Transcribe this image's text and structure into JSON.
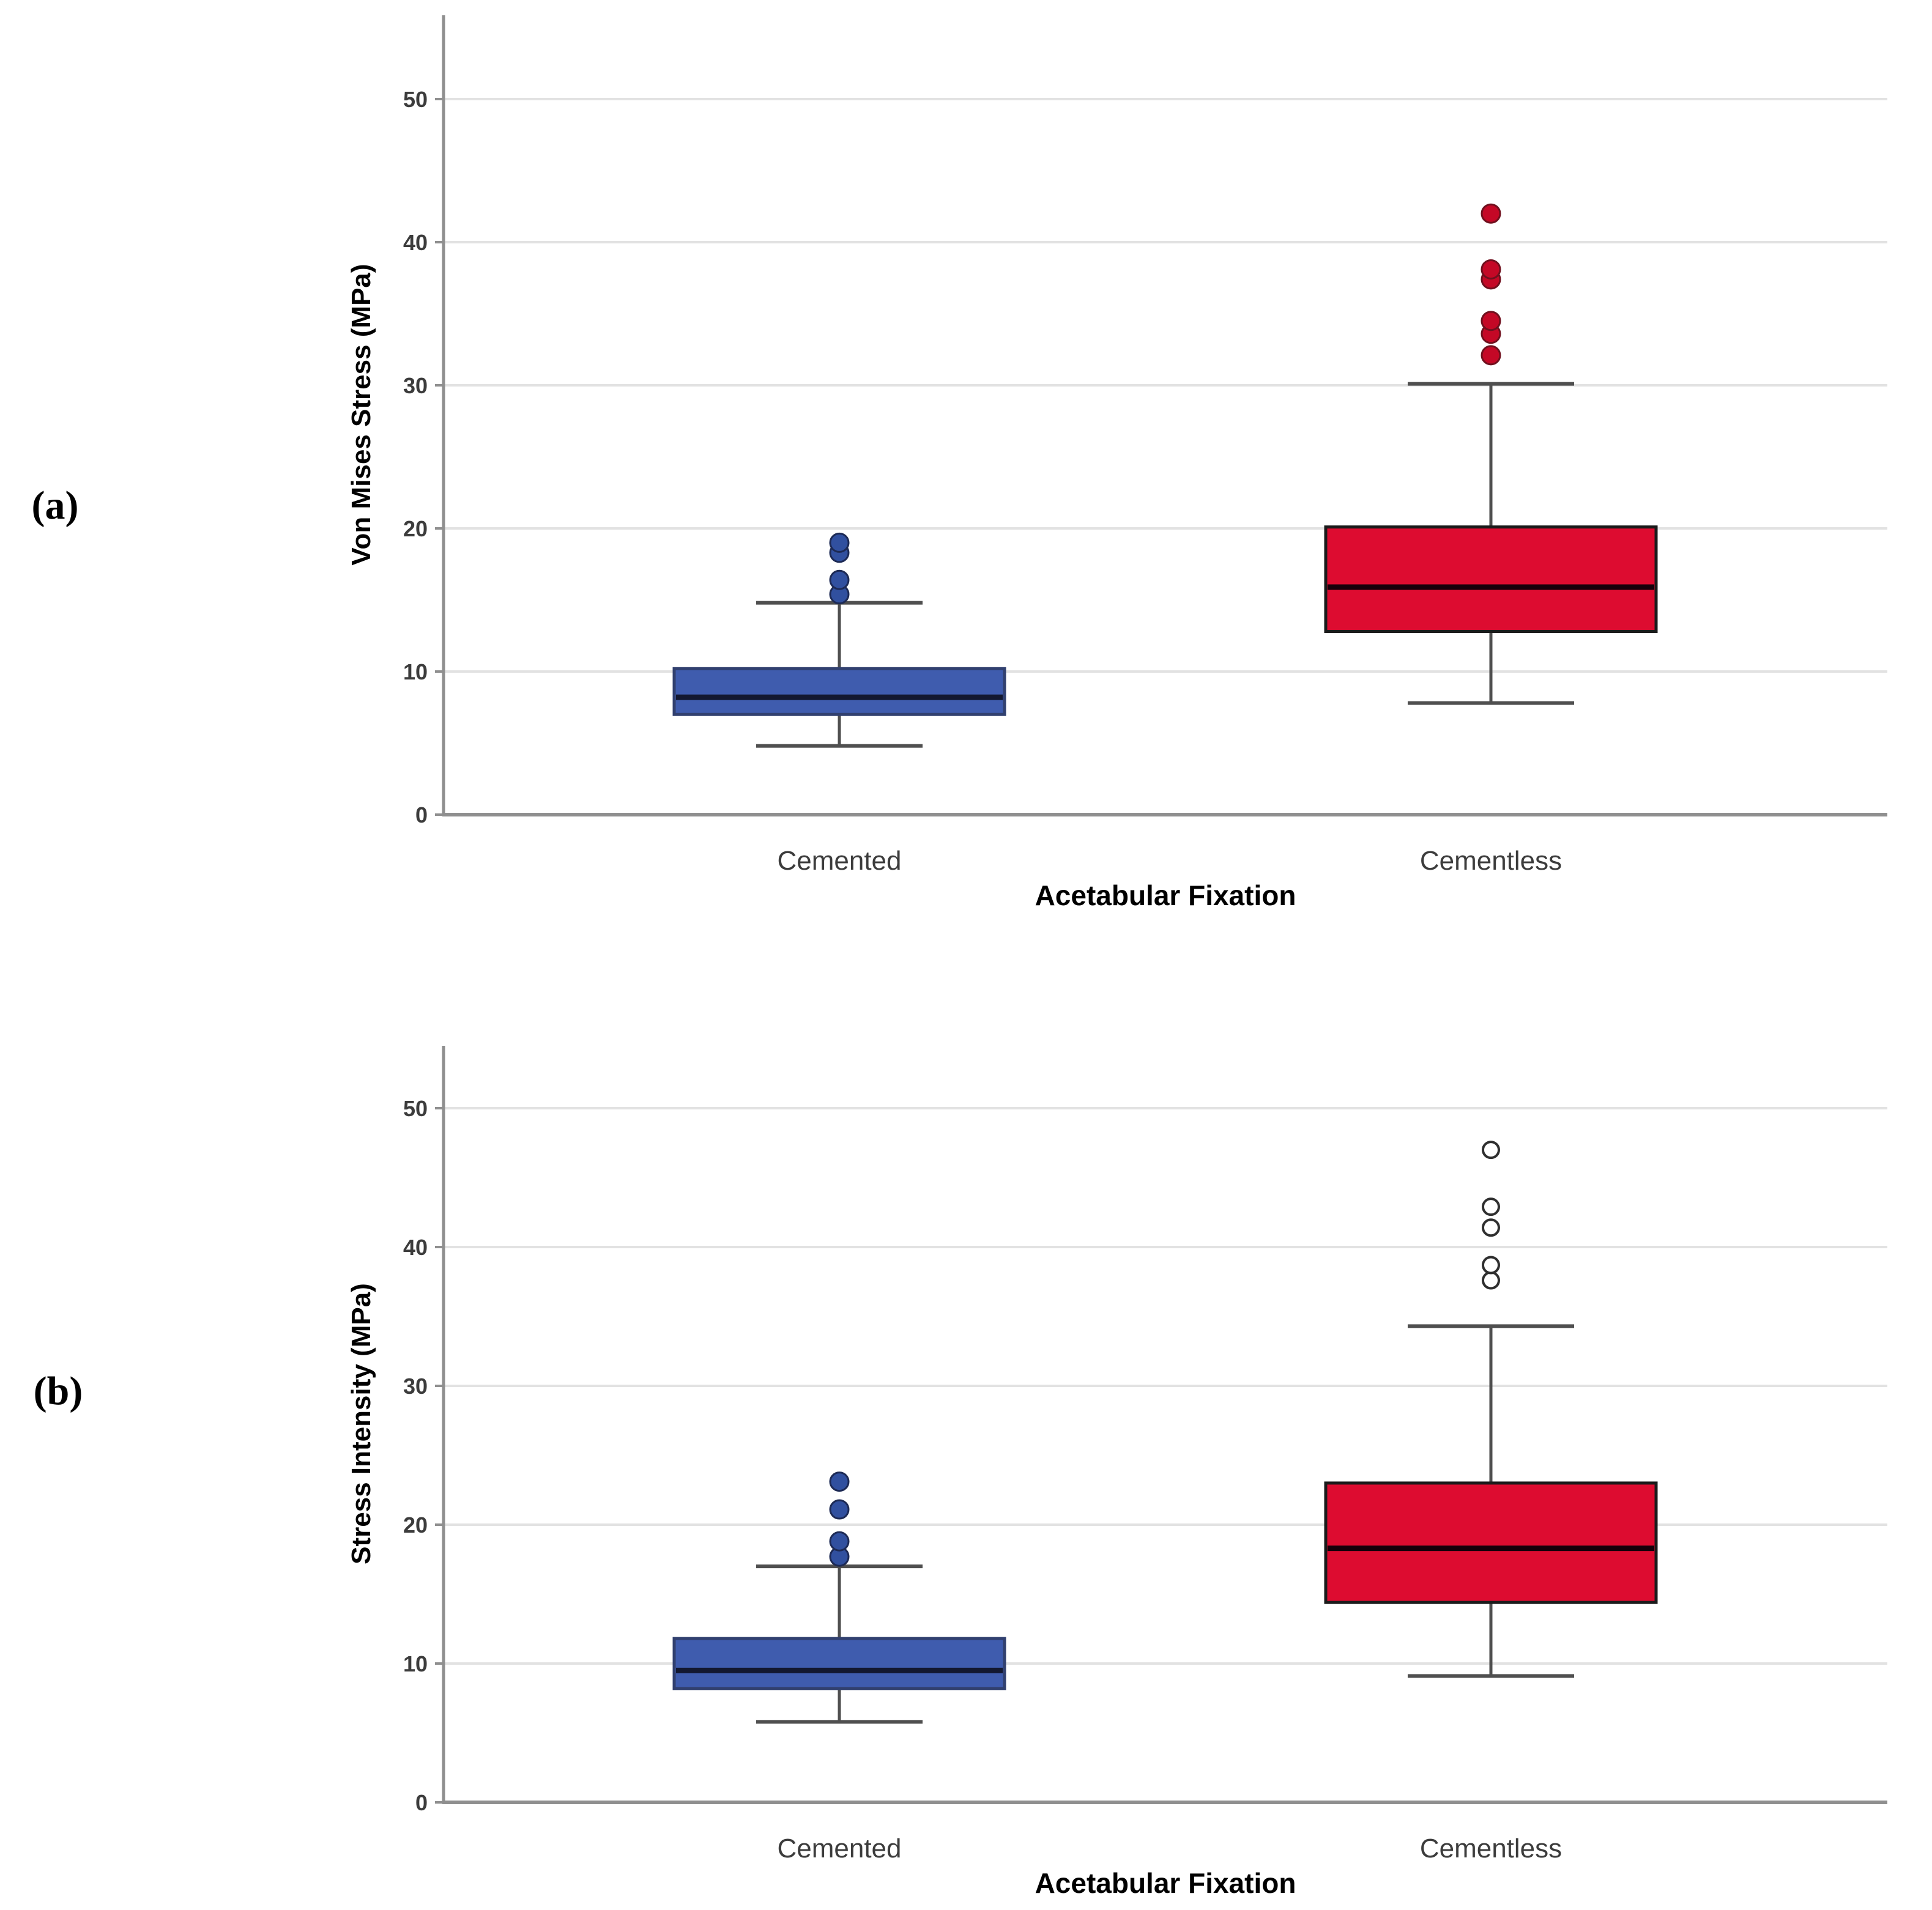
{
  "figure": {
    "background": "#ffffff",
    "panels": [
      {
        "label": "(a)"
      },
      {
        "label": "(b)"
      }
    ],
    "colors": {
      "gridline": "#e2e2e2",
      "axis": "#8f8f8f",
      "tick_label": "#3c3c3c",
      "category_label": "#3c3c3c",
      "title_text": "#000000",
      "whisker": "#4f4f4f"
    }
  },
  "chart_data": [
    {
      "type": "boxplot",
      "panel": "a",
      "ylabel": "Von Mises Stress (MPa)",
      "xlabel": "Acetabular Fixation",
      "categories": [
        "Cemented",
        "Cementless"
      ],
      "ylim": [
        0,
        55.9
      ],
      "yticks": [
        0,
        10,
        20,
        30,
        40,
        50
      ],
      "grid": true,
      "series": [
        {
          "category": "Cemented",
          "whisker_low": 4.8,
          "q1": 7.0,
          "median": 8.2,
          "q3": 10.2,
          "whisker_high": 14.8,
          "outliers": [
            15.4,
            16.4,
            18.3,
            19.0
          ],
          "outlier_style": "filled",
          "fill": "#3f5cae",
          "border": "#31406f",
          "median_color": "#131830",
          "outlier_fill": "#31509f",
          "outlier_stroke": "#1d2a55"
        },
        {
          "category": "Cementless",
          "whisker_low": 7.8,
          "q1": 12.8,
          "median": 15.9,
          "q3": 20.1,
          "whisker_high": 30.1,
          "outliers": [
            32.1,
            33.6,
            34.5,
            37.4,
            38.1,
            42.0
          ],
          "outlier_style": "filled",
          "fill": "#dd0c30",
          "border": "#1b1b1b",
          "median_color": "#16000a",
          "outlier_fill": "#c40826",
          "outlier_stroke": "#70101e"
        }
      ]
    },
    {
      "type": "boxplot",
      "panel": "b",
      "ylabel": "Stress Intensity (MPa)",
      "xlabel": "Acetabular Fixation",
      "categories": [
        "Cemented",
        "Cementless"
      ],
      "ylim": [
        0,
        54.5
      ],
      "yticks": [
        0,
        10,
        20,
        30,
        40,
        50
      ],
      "grid": true,
      "series": [
        {
          "category": "Cemented",
          "whisker_low": 5.8,
          "q1": 8.2,
          "median": 9.5,
          "q3": 11.8,
          "whisker_high": 17.0,
          "outliers": [
            17.7,
            18.8,
            21.1,
            23.1
          ],
          "outlier_style": "filled",
          "fill": "#3f5cae",
          "border": "#31406f",
          "median_color": "#131830",
          "outlier_fill": "#31509f",
          "outlier_stroke": "#1d2a55"
        },
        {
          "category": "Cementless",
          "whisker_low": 9.1,
          "q1": 14.4,
          "median": 18.3,
          "q3": 23.0,
          "whisker_high": 34.3,
          "outliers": [
            37.6,
            38.7,
            41.4,
            42.9,
            47.0
          ],
          "outlier_style": "open",
          "fill": "#dd0c30",
          "border": "#1b1b1b",
          "median_color": "#16000a",
          "outlier_fill": "#ffffff",
          "outlier_stroke": "#2f2f2f"
        }
      ]
    }
  ]
}
